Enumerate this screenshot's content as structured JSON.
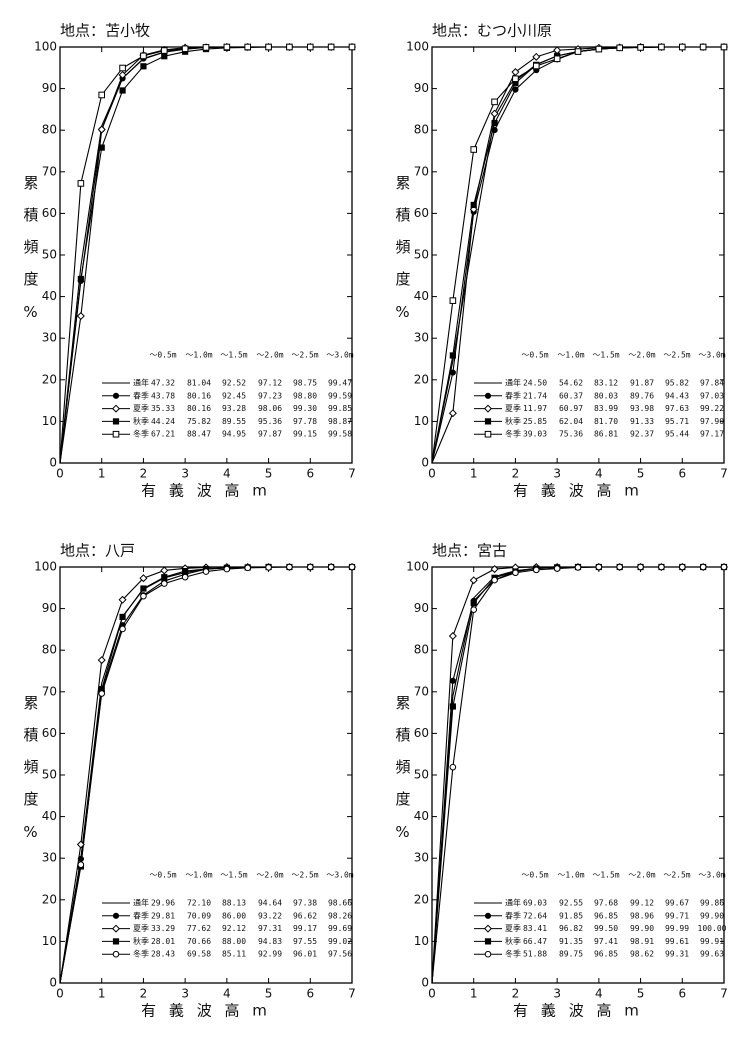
{
  "chart_data": [
    {
      "type": "line",
      "title": "地点：苫小牧",
      "y_label": "累積頻度%",
      "x_label": "有 義 波 高 m",
      "x": [
        0,
        0.5,
        1,
        1.5,
        2,
        2.5,
        3,
        3.5,
        4,
        4.5,
        5,
        5.5,
        6,
        6.5,
        7
      ],
      "xlim": [
        0,
        7
      ],
      "xticks": [
        0,
        1,
        2,
        3,
        4,
        5,
        6,
        7
      ],
      "ylim": [
        0,
        100
      ],
      "yticks": [
        0,
        10,
        20,
        30,
        40,
        50,
        60,
        70,
        80,
        90,
        100
      ],
      "table_header": [
        "～0.5m",
        "～1.0m",
        "～1.5m",
        "～2.0m",
        "～2.5m",
        "～3.0m"
      ],
      "series": [
        {
          "name": "通年",
          "color": "#000",
          "marker": "none",
          "values": [
            0,
            47.32,
            81.04,
            92.52,
            97.12,
            98.75,
            99.47,
            99.9,
            100,
            100,
            100,
            100,
            100,
            100,
            100
          ],
          "value_labels": [
            null,
            "47.32",
            "81.04",
            "92.52",
            "97.12",
            "98.75",
            "99.47",
            null,
            null,
            null,
            null,
            null,
            null,
            null,
            null
          ]
        },
        {
          "name": "春季",
          "color": "#000",
          "marker": "circle",
          "values": [
            0,
            43.78,
            80.16,
            92.45,
            97.23,
            98.8,
            99.59,
            99.9,
            100,
            100,
            100,
            100,
            100,
            100,
            100
          ],
          "value_labels": [
            null,
            "43.78",
            "80.16",
            "92.45",
            "97.23",
            "98.80",
            "99.59",
            null,
            null,
            null,
            null,
            null,
            null,
            null,
            null
          ]
        },
        {
          "name": "夏季",
          "color": "#000",
          "marker": "diamond",
          "values": [
            0,
            35.33,
            80.16,
            93.28,
            98.06,
            99.3,
            99.85,
            99.9,
            100,
            100,
            100,
            100,
            100,
            100,
            100
          ],
          "value_labels": [
            null,
            "35.33",
            "80.16",
            "93.28",
            "98.06",
            "99.30",
            "99.85",
            null,
            null,
            null,
            null,
            null,
            null,
            null,
            null
          ]
        },
        {
          "name": "秋季",
          "color": "#000",
          "marker": "square",
          "values": [
            0,
            44.24,
            75.82,
            89.55,
            95.36,
            97.78,
            98.87,
            99.5,
            99.8,
            99.9,
            100,
            100,
            100,
            100,
            100
          ],
          "value_labels": [
            null,
            "44.24",
            "75.82",
            "89.55",
            "95.36",
            "97.78",
            "98.87",
            null,
            null,
            null,
            null,
            null,
            null,
            null,
            null
          ]
        },
        {
          "name": "冬季",
          "color": "#000",
          "marker": "open-square",
          "values": [
            0,
            67.21,
            88.47,
            94.95,
            97.87,
            99.15,
            99.58,
            99.9,
            100,
            100,
            100,
            100,
            100,
            100,
            100
          ],
          "value_labels": [
            null,
            "67.21",
            "88.47",
            "94.95",
            "97.87",
            "99.15",
            "99.58",
            null,
            null,
            null,
            null,
            null,
            null,
            null,
            null
          ]
        }
      ]
    },
    {
      "type": "line",
      "title": "地点：むつ小川原",
      "y_label": "累積頻度%",
      "x_label": "有 義 波 高 m",
      "x": [
        0,
        0.5,
        1,
        1.5,
        2,
        2.5,
        3,
        3.5,
        4,
        4.5,
        5,
        5.5,
        6,
        6.5,
        7
      ],
      "xlim": [
        0,
        7
      ],
      "xticks": [
        0,
        1,
        2,
        3,
        4,
        5,
        6,
        7
      ],
      "ylim": [
        0,
        100
      ],
      "yticks": [
        0,
        10,
        20,
        30,
        40,
        50,
        60,
        70,
        80,
        90,
        100
      ],
      "table_header": [
        "～0.5m",
        "～1.0m",
        "～1.5m",
        "～2.0m",
        "～2.5m",
        "～3.0m"
      ],
      "series": [
        {
          "name": "通年",
          "color": "#000",
          "marker": "none",
          "values": [
            0,
            24.5,
            54.62,
            83.12,
            91.87,
            95.82,
            97.84,
            98.9,
            99.5,
            99.8,
            99.9,
            100,
            100,
            100,
            100
          ],
          "value_labels": [
            null,
            "24.50",
            "54.62",
            "83.12",
            "91.87",
            "95.82",
            "97.84",
            null,
            null,
            null,
            null,
            null,
            null,
            null,
            null
          ]
        },
        {
          "name": "春季",
          "color": "#000",
          "marker": "circle",
          "values": [
            0,
            21.74,
            60.37,
            80.03,
            89.76,
            94.43,
            97.03,
            98.9,
            99.5,
            99.8,
            99.9,
            100,
            100,
            100,
            100
          ],
          "value_labels": [
            null,
            "21.74",
            "60.37",
            "80.03",
            "89.76",
            "94.43",
            "97.03",
            null,
            null,
            null,
            null,
            null,
            null,
            null,
            null
          ]
        },
        {
          "name": "夏季",
          "color": "#000",
          "marker": "diamond",
          "values": [
            0,
            11.97,
            60.97,
            83.99,
            93.98,
            97.63,
            99.22,
            99.5,
            99.8,
            99.9,
            100,
            100,
            100,
            100,
            100
          ],
          "value_labels": [
            null,
            "11.97",
            "60.97",
            "83.99",
            "93.98",
            "97.63",
            "99.22",
            null,
            null,
            null,
            null,
            null,
            null,
            null,
            null
          ]
        },
        {
          "name": "秋季",
          "color": "#000",
          "marker": "square",
          "values": [
            0,
            25.85,
            62.04,
            81.7,
            91.33,
            95.71,
            97.9,
            98.9,
            99.5,
            99.8,
            99.9,
            100,
            100,
            100,
            100
          ],
          "value_labels": [
            null,
            "25.85",
            "62.04",
            "81.70",
            "91.33",
            "95.71",
            "97.90",
            null,
            null,
            null,
            null,
            null,
            null,
            null,
            null
          ]
        },
        {
          "name": "冬季",
          "color": "#000",
          "marker": "open-square",
          "values": [
            0,
            39.03,
            75.36,
            86.81,
            92.37,
            95.44,
            97.17,
            98.9,
            99.5,
            99.8,
            99.9,
            100,
            100,
            100,
            100
          ],
          "value_labels": [
            null,
            "39.03",
            "75.36",
            "86.81",
            "92.37",
            "95.44",
            "97.17",
            null,
            null,
            null,
            null,
            null,
            null,
            null,
            null
          ]
        }
      ]
    },
    {
      "type": "line",
      "title": "地点：八戸",
      "y_label": "累積頻度%",
      "x_label": "有 義 波 高 m",
      "x": [
        0,
        0.5,
        1,
        1.5,
        2,
        2.5,
        3,
        3.5,
        4,
        4.5,
        5,
        5.5,
        6,
        6.5,
        7
      ],
      "xlim": [
        0,
        7
      ],
      "xticks": [
        0,
        1,
        2,
        3,
        4,
        5,
        6,
        7
      ],
      "ylim": [
        0,
        100
      ],
      "yticks": [
        0,
        10,
        20,
        30,
        40,
        50,
        60,
        70,
        80,
        90,
        100
      ],
      "table_header": [
        "～0.5m",
        "～1.0m",
        "～1.5m",
        "～2.0m",
        "～2.5m",
        "～3.0m"
      ],
      "series": [
        {
          "name": "通年",
          "color": "#000",
          "marker": "none",
          "values": [
            0,
            29.96,
            72.1,
            88.13,
            94.64,
            97.38,
            98.66,
            99.5,
            99.8,
            99.9,
            100,
            100,
            100,
            100,
            100
          ],
          "value_labels": [
            null,
            "29.96",
            "72.10",
            "88.13",
            "94.64",
            "97.38",
            "98.66",
            null,
            null,
            null,
            null,
            null,
            null,
            null,
            null
          ]
        },
        {
          "name": "春季",
          "color": "#000",
          "marker": "circle",
          "values": [
            0,
            29.81,
            70.09,
            86,
            93.22,
            96.62,
            98.26,
            99.5,
            99.8,
            99.9,
            100,
            100,
            100,
            100,
            100
          ],
          "value_labels": [
            null,
            "29.81",
            "70.09",
            "86.00",
            "93.22",
            "96.62",
            "98.26",
            null,
            null,
            null,
            null,
            null,
            null,
            null,
            null
          ]
        },
        {
          "name": "夏季",
          "color": "#000",
          "marker": "diamond",
          "values": [
            0,
            33.29,
            77.62,
            92.12,
            97.31,
            99.17,
            99.69,
            99.9,
            100,
            100,
            100,
            100,
            100,
            100,
            100
          ],
          "value_labels": [
            null,
            "33.29",
            "77.62",
            "92.12",
            "97.31",
            "99.17",
            "99.69",
            null,
            null,
            null,
            null,
            null,
            null,
            null,
            null
          ]
        },
        {
          "name": "秋季",
          "color": "#000",
          "marker": "square",
          "values": [
            0,
            28.01,
            70.66,
            88,
            94.83,
            97.55,
            99.02,
            99.5,
            99.8,
            99.9,
            100,
            100,
            100,
            100,
            100
          ],
          "value_labels": [
            null,
            "28.01",
            "70.66",
            "88.00",
            "94.83",
            "97.55",
            "99.02",
            null,
            null,
            null,
            null,
            null,
            null,
            null,
            null
          ]
        },
        {
          "name": "冬季",
          "color": "#000",
          "marker": "open-circle",
          "values": [
            0,
            28.43,
            69.58,
            85.11,
            92.99,
            96.01,
            97.56,
            98.9,
            99.5,
            99.8,
            99.9,
            100,
            100,
            100,
            100
          ],
          "value_labels": [
            null,
            "28.43",
            "69.58",
            "85.11",
            "92.99",
            "96.01",
            "97.56",
            null,
            null,
            null,
            null,
            null,
            null,
            null,
            null
          ]
        }
      ]
    },
    {
      "type": "line",
      "title": "地点：宮古",
      "y_label": "累積頻度%",
      "x_label": "有 義 波 高 m",
      "x": [
        0,
        0.5,
        1,
        1.5,
        2,
        2.5,
        3,
        3.5,
        4,
        4.5,
        5,
        5.5,
        6,
        6.5,
        7
      ],
      "xlim": [
        0,
        7
      ],
      "xticks": [
        0,
        1,
        2,
        3,
        4,
        5,
        6,
        7
      ],
      "ylim": [
        0,
        100
      ],
      "yticks": [
        0,
        10,
        20,
        30,
        40,
        50,
        60,
        70,
        80,
        90,
        100
      ],
      "table_header": [
        "～0.5m",
        "～1.0m",
        "～1.5m",
        "～2.0m",
        "～2.5m",
        "～3.0m"
      ],
      "series": [
        {
          "name": "通年",
          "color": "#000",
          "marker": "none",
          "values": [
            0,
            69.03,
            92.55,
            97.68,
            99.12,
            99.67,
            99.86,
            99.9,
            100,
            100,
            100,
            100,
            100,
            100,
            100
          ],
          "value_labels": [
            null,
            "69.03",
            "92.55",
            "97.68",
            "99.12",
            "99.67",
            "99.86",
            null,
            null,
            null,
            null,
            null,
            null,
            null,
            null
          ]
        },
        {
          "name": "春季",
          "color": "#000",
          "marker": "circle",
          "values": [
            0,
            72.64,
            91.85,
            96.85,
            98.96,
            99.71,
            99.9,
            100,
            100,
            100,
            100,
            100,
            100,
            100,
            100
          ],
          "value_labels": [
            null,
            "72.64",
            "91.85",
            "96.85",
            "98.96",
            "99.71",
            "99.90",
            null,
            null,
            null,
            null,
            null,
            null,
            null,
            null
          ]
        },
        {
          "name": "夏季",
          "color": "#000",
          "marker": "diamond",
          "values": [
            0,
            83.41,
            96.82,
            99.5,
            99.9,
            99.99,
            100,
            100,
            100,
            100,
            100,
            100,
            100,
            100,
            100
          ],
          "value_labels": [
            null,
            "83.41",
            "96.82",
            "99.50",
            "99.90",
            "99.99",
            "100.00",
            null,
            null,
            null,
            null,
            null,
            null,
            null,
            null
          ]
        },
        {
          "name": "秋季",
          "color": "#000",
          "marker": "square",
          "values": [
            0,
            66.47,
            91.35,
            97.41,
            98.91,
            99.61,
            99.91,
            100,
            100,
            100,
            100,
            100,
            100,
            100,
            100
          ],
          "value_labels": [
            null,
            "66.47",
            "91.35",
            "97.41",
            "98.91",
            "99.61",
            "99.91",
            null,
            null,
            null,
            null,
            null,
            null,
            null,
            null
          ]
        },
        {
          "name": "冬季",
          "color": "#000",
          "marker": "open-circle",
          "values": [
            0,
            51.88,
            89.75,
            96.85,
            98.62,
            99.31,
            99.63,
            99.9,
            100,
            100,
            100,
            100,
            100,
            100,
            100
          ],
          "value_labels": [
            null,
            "51.88",
            "89.75",
            "96.85",
            "98.62",
            "99.31",
            "99.63",
            null,
            null,
            null,
            null,
            null,
            null,
            null,
            null
          ]
        }
      ]
    }
  ]
}
